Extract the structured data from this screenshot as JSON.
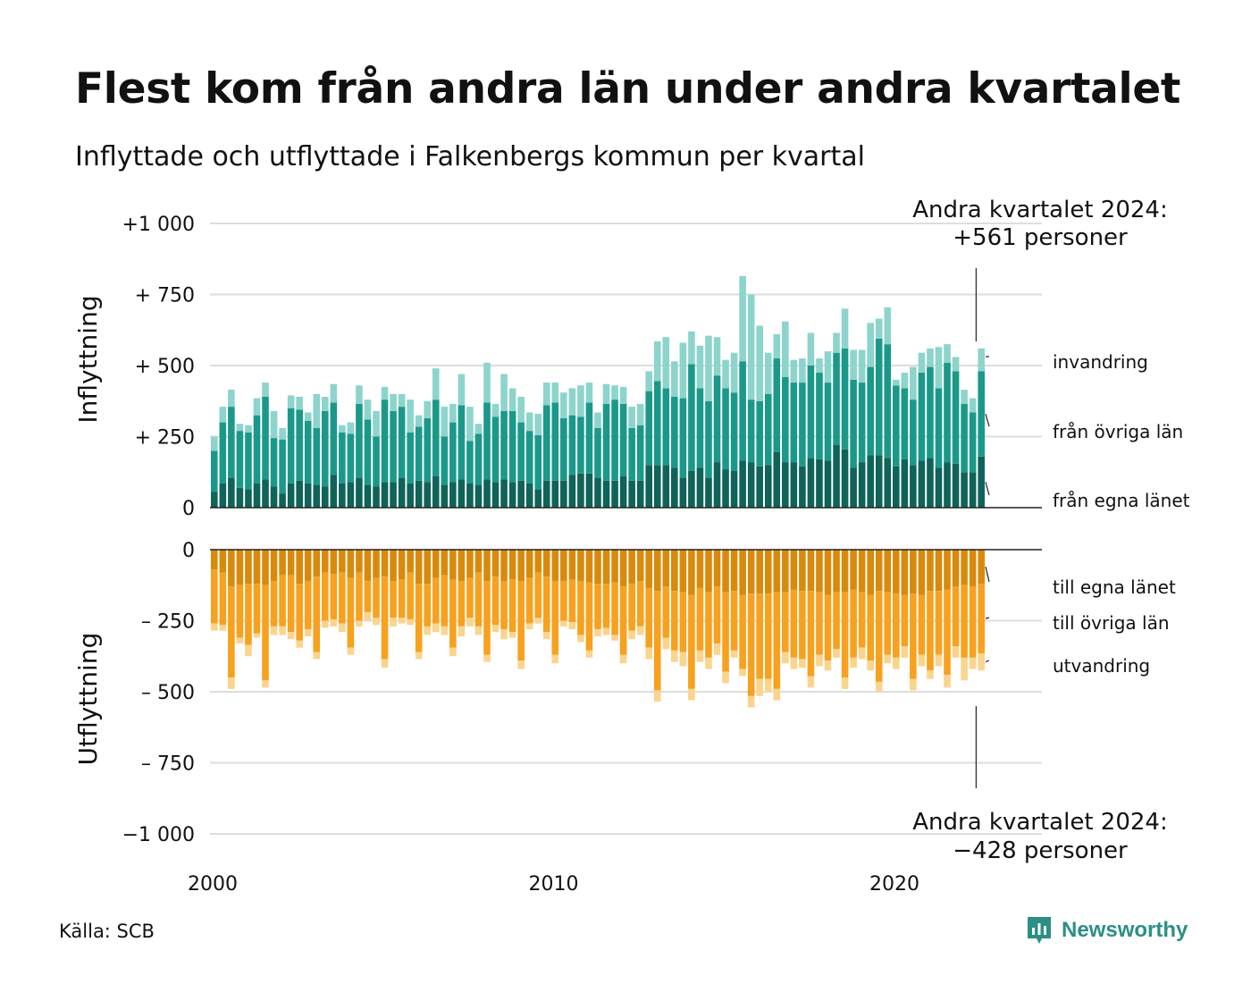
{
  "title": "Flest kom från andra län under andra kvartalet",
  "subtitle": "Inflyttade och utflyttade i Falkenbergs kommun per kvartal",
  "source": "Källa: SCB",
  "brand": "Newsworthy",
  "brand_icon": "newsworthy-logo-icon",
  "colors": {
    "in_own": "#0f6358",
    "in_other": "#1a998a",
    "in_immig": "#8dd4cc",
    "out_own": "#d98a0b",
    "out_other": "#f8a11e",
    "out_emig": "#fbd48d",
    "grid": "#dddddd"
  },
  "chart_data": {
    "type": "bar",
    "stacked": true,
    "x_label_ticks": [
      "2000",
      "2010",
      "2020"
    ],
    "start_year": 2000,
    "quarters_per_year": 4,
    "top": {
      "ylabel": "Inflyttning",
      "ylim": [
        0,
        1000
      ],
      "tick_values": [
        0,
        250,
        500,
        750,
        1000
      ],
      "tick_labels": [
        "0",
        "+  250",
        "+  500",
        "+  750",
        "+1 000"
      ],
      "annotation_line1": "Andra kvartalet 2024:",
      "annotation_line2": "+561 personer",
      "series": [
        {
          "name": "från egna länet",
          "label": "från egna länet",
          "values": [
            55,
            85,
            105,
            70,
            65,
            85,
            100,
            75,
            50,
            85,
            95,
            85,
            80,
            75,
            115,
            85,
            90,
            105,
            80,
            75,
            90,
            90,
            105,
            85,
            95,
            90,
            110,
            80,
            90,
            100,
            85,
            80,
            100,
            90,
            100,
            90,
            95,
            85,
            65,
            95,
            95,
            95,
            115,
            120,
            120,
            105,
            95,
            95,
            110,
            95,
            95,
            150,
            150,
            150,
            140,
            105,
            130,
            140,
            105,
            160,
            135,
            130,
            165,
            160,
            145,
            150,
            195,
            160,
            160,
            145,
            175,
            170,
            165,
            220,
            205,
            140,
            160,
            185,
            185,
            175,
            145,
            170,
            150,
            165,
            175,
            140,
            160,
            155,
            125,
            125,
            180
          ]
        },
        {
          "name": "från övriga län",
          "label": "från övriga län",
          "values": [
            145,
            215,
            250,
            200,
            200,
            240,
            290,
            170,
            190,
            265,
            250,
            220,
            200,
            265,
            255,
            180,
            170,
            260,
            230,
            175,
            290,
            250,
            250,
            180,
            190,
            225,
            270,
            170,
            210,
            260,
            150,
            180,
            270,
            230,
            240,
            250,
            205,
            185,
            190,
            265,
            275,
            220,
            210,
            200,
            250,
            175,
            270,
            285,
            255,
            185,
            195,
            260,
            295,
            270,
            250,
            280,
            375,
            280,
            270,
            305,
            285,
            275,
            350,
            220,
            230,
            250,
            330,
            300,
            280,
            295,
            325,
            305,
            275,
            325,
            355,
            310,
            280,
            310,
            410,
            400,
            285,
            250,
            230,
            310,
            320,
            280,
            350,
            325,
            240,
            210,
            300
          ]
        },
        {
          "name": "invandring",
          "label": "invandring",
          "values": [
            50,
            55,
            60,
            25,
            25,
            60,
            50,
            95,
            40,
            45,
            45,
            30,
            120,
            50,
            65,
            25,
            40,
            65,
            70,
            90,
            45,
            60,
            45,
            115,
            40,
            60,
            110,
            105,
            65,
            110,
            120,
            35,
            140,
            45,
            130,
            80,
            90,
            65,
            75,
            80,
            70,
            90,
            95,
            110,
            70,
            55,
            70,
            50,
            60,
            75,
            75,
            70,
            140,
            180,
            125,
            195,
            115,
            150,
            230,
            135,
            100,
            140,
            300,
            370,
            265,
            145,
            85,
            195,
            80,
            85,
            115,
            50,
            110,
            70,
            140,
            105,
            115,
            155,
            70,
            130,
            20,
            55,
            115,
            70,
            65,
            145,
            65,
            50,
            50,
            50,
            80
          ]
        }
      ]
    },
    "bottom": {
      "ylabel": "Utflyttning",
      "ylim": [
        -1000,
        0
      ],
      "tick_values": [
        0,
        -250,
        -500,
        -750,
        -1000
      ],
      "tick_labels": [
        "0",
        "–  250",
        "–  500",
        "–  750",
        "−1 000"
      ],
      "annotation_line1": "Andra kvartalet 2024:",
      "annotation_line2": "−428 personer",
      "series": [
        {
          "name": "till egna länet",
          "label": "till egna länet",
          "values": [
            -70,
            -80,
            -130,
            -125,
            -120,
            -120,
            -125,
            -110,
            -90,
            -90,
            -120,
            -110,
            -95,
            -80,
            -85,
            -80,
            -100,
            -80,
            -110,
            -100,
            -95,
            -110,
            -105,
            -80,
            -120,
            -120,
            -100,
            -90,
            -105,
            -110,
            -100,
            -80,
            -110,
            -95,
            -110,
            -105,
            -110,
            -100,
            -80,
            -95,
            -110,
            -110,
            -105,
            -110,
            -115,
            -120,
            -120,
            -115,
            -130,
            -120,
            -110,
            -135,
            -145,
            -130,
            -145,
            -150,
            -160,
            -135,
            -150,
            -130,
            -150,
            -145,
            -160,
            -155,
            -155,
            -155,
            -150,
            -150,
            -140,
            -145,
            -145,
            -150,
            -160,
            -150,
            -150,
            -140,
            -150,
            -160,
            -145,
            -150,
            -155,
            -160,
            -155,
            -160,
            -145,
            -145,
            -140,
            -130,
            -125,
            -130,
            -120
          ]
        },
        {
          "name": "till övriga län",
          "label": "till övriga län",
          "values": [
            -190,
            -185,
            -320,
            -185,
            -215,
            -175,
            -335,
            -160,
            -180,
            -200,
            -200,
            -170,
            -265,
            -170,
            -160,
            -180,
            -245,
            -170,
            -110,
            -140,
            -290,
            -130,
            -135,
            -165,
            -240,
            -150,
            -160,
            -180,
            -240,
            -160,
            -140,
            -190,
            -260,
            -170,
            -170,
            -185,
            -280,
            -160,
            -160,
            -195,
            -260,
            -140,
            -150,
            -190,
            -240,
            -160,
            -155,
            -185,
            -240,
            -165,
            -160,
            -210,
            -350,
            -180,
            -210,
            -210,
            -330,
            -220,
            -230,
            -200,
            -280,
            -210,
            -260,
            -360,
            -300,
            -300,
            -340,
            -210,
            -240,
            -240,
            -300,
            -220,
            -230,
            -200,
            -300,
            -240,
            -195,
            -230,
            -320,
            -220,
            -225,
            -180,
            -300,
            -210,
            -280,
            -225,
            -300,
            -210,
            -255,
            -250,
            -245
          ]
        },
        {
          "name": "utvandring",
          "label": "utvandring",
          "values": [
            -25,
            -20,
            -40,
            -20,
            -40,
            -15,
            -25,
            -30,
            -30,
            -25,
            -25,
            -25,
            -25,
            -25,
            -25,
            -30,
            -25,
            -20,
            -30,
            -25,
            -30,
            -30,
            -20,
            -20,
            -25,
            -30,
            -30,
            -30,
            -30,
            -35,
            -30,
            -30,
            -25,
            -25,
            -35,
            -20,
            -30,
            -20,
            -20,
            -25,
            -30,
            -20,
            -25,
            -25,
            -25,
            -25,
            -25,
            -20,
            -30,
            -30,
            -30,
            -40,
            -40,
            -40,
            -40,
            -50,
            -40,
            -40,
            -40,
            -40,
            -40,
            -25,
            -25,
            -40,
            -60,
            -45,
            -40,
            -40,
            -40,
            -30,
            -40,
            -40,
            -35,
            -30,
            -40,
            -35,
            -40,
            -35,
            -35,
            -30,
            -40,
            -40,
            -40,
            -40,
            -30,
            -40,
            -45,
            -40,
            -80,
            -40,
            -60
          ]
        }
      ]
    }
  }
}
